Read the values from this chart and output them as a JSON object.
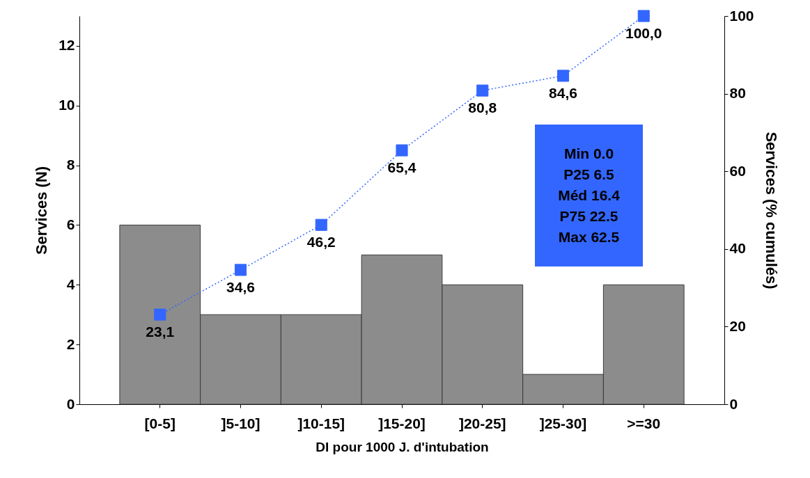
{
  "chart_data": {
    "type": "bar",
    "xlabel": "DI pour 1000 J. d'intubation",
    "ylabel": "Services (N)",
    "y2label": "Services (% cumulés)",
    "categories": [
      "[0-5]",
      "]5-10]",
      "]10-15]",
      "]15-20]",
      "]20-25]",
      "]25-30]",
      ">=30"
    ],
    "series": [
      {
        "color": "#8c8c8c",
        "values": [
          6,
          3,
          3,
          5,
          4,
          1,
          4
        ]
      },
      {
        "type": "line",
        "axis": "y2",
        "color": "#3366ff",
        "values": [
          23.1,
          34.6,
          46.2,
          65.4,
          80.8,
          84.6,
          100.0
        ],
        "value_labels": [
          "23,1",
          "34,6",
          "46,2",
          "65,4",
          "80,8",
          "84,6",
          "100,0"
        ]
      }
    ],
    "marker": "square",
    "line_style": "dotted",
    "ylim": [
      0,
      13
    ],
    "yticks": [
      0,
      2,
      4,
      6,
      8,
      10,
      12
    ],
    "y2lim": [
      0,
      100
    ],
    "y2ticks": [
      0,
      20,
      40,
      60,
      80,
      100
    ],
    "annotations": [
      "Min 0.0",
      "P25 6.5",
      "Méd 16.4",
      "P75 22.5",
      "Max 62.5"
    ]
  }
}
